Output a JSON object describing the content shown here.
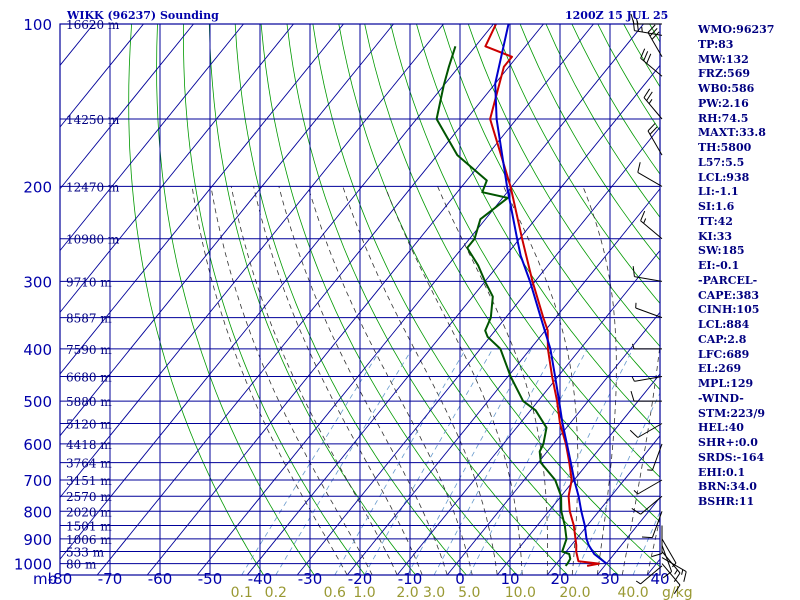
{
  "header": {
    "station": "WIKK (96237) Sounding",
    "time": "1200Z 15 JUL 25"
  },
  "chart_data": {
    "type": "skew-t",
    "pressure_unit": "mb",
    "mixing_ratio_unit": "g/kg",
    "pressure_levels": [
      100,
      200,
      300,
      400,
      500,
      600,
      700,
      800,
      900,
      1000
    ],
    "temperature_ticks": [
      -80,
      -70,
      -60,
      -50,
      -40,
      -30,
      -20,
      -10,
      0,
      10,
      20,
      30,
      40
    ],
    "mixing_ratio_labels": [
      "0.1",
      "0.2",
      "0.6",
      "1.0",
      "2.0",
      "3.0",
      "5.0",
      "10.0",
      "20.0",
      "40.0"
    ],
    "height_labels": [
      {
        "p": 100,
        "text": "16620 m"
      },
      {
        "p": 150,
        "text": "14250 m"
      },
      {
        "p": 200,
        "text": "12470 m"
      },
      {
        "p": 250,
        "text": "10980 m"
      },
      {
        "p": 300,
        "text": "9710 m"
      },
      {
        "p": 350,
        "text": "8587 m"
      },
      {
        "p": 400,
        "text": "7590 m"
      },
      {
        "p": 450,
        "text": "6680 m"
      },
      {
        "p": 500,
        "text": "5880 m"
      },
      {
        "p": 550,
        "text": "5120 m"
      },
      {
        "p": 600,
        "text": "4418 m"
      },
      {
        "p": 650,
        "text": "3764 m"
      },
      {
        "p": 700,
        "text": "3151 m"
      },
      {
        "p": 750,
        "text": "2570 m"
      },
      {
        "p": 800,
        "text": "2020 m"
      },
      {
        "p": 850,
        "text": "1501 m"
      },
      {
        "p": 900,
        "text": "1006 m"
      },
      {
        "p": 950,
        "text": "533 m"
      },
      {
        "p": 1000,
        "text": "80 m"
      }
    ],
    "series": [
      {
        "kind": "temperature",
        "color": "#cc0000",
        "points": [
          [
            1010,
            26.5
          ],
          [
            1000,
            28.5
          ],
          [
            990,
            24
          ],
          [
            950,
            22
          ],
          [
            925,
            21
          ],
          [
            900,
            19.8
          ],
          [
            850,
            17.3
          ],
          [
            800,
            14.2
          ],
          [
            750,
            11.5
          ],
          [
            700,
            9.5
          ],
          [
            650,
            6.2
          ],
          [
            600,
            2.5
          ],
          [
            550,
            -2
          ],
          [
            500,
            -6.2
          ],
          [
            450,
            -11.2
          ],
          [
            400,
            -16.5
          ],
          [
            370,
            -19.5
          ],
          [
            350,
            -22.5
          ],
          [
            300,
            -30.5
          ],
          [
            250,
            -39.5
          ],
          [
            200,
            -50.3
          ],
          [
            150,
            -65.3
          ],
          [
            120,
            -71
          ],
          [
            115,
            -71
          ],
          [
            110,
            -78
          ],
          [
            100,
            -79.5
          ]
        ]
      },
      {
        "kind": "dewpoint",
        "color": "#005500",
        "points": [
          [
            1010,
            22.2
          ],
          [
            1000,
            22.2
          ],
          [
            980,
            22
          ],
          [
            960,
            21
          ],
          [
            950,
            19.2
          ],
          [
            900,
            18
          ],
          [
            850,
            15.5
          ],
          [
            800,
            12.5
          ],
          [
            750,
            10
          ],
          [
            700,
            6.2
          ],
          [
            650,
            0.5
          ],
          [
            620,
            -1.5
          ],
          [
            600,
            -2
          ],
          [
            560,
            -4
          ],
          [
            520,
            -9
          ],
          [
            500,
            -13
          ],
          [
            450,
            -19.5
          ],
          [
            400,
            -26
          ],
          [
            380,
            -30.5
          ],
          [
            370,
            -32
          ],
          [
            350,
            -33
          ],
          [
            320,
            -36
          ],
          [
            300,
            -40
          ],
          [
            280,
            -44
          ],
          [
            260,
            -49
          ],
          [
            250,
            -49
          ],
          [
            230,
            -51
          ],
          [
            210,
            -49
          ],
          [
            205,
            -55
          ],
          [
            195,
            -56
          ],
          [
            175,
            -66
          ],
          [
            150,
            -76
          ],
          [
            130,
            -80
          ],
          [
            120,
            -82
          ],
          [
            110,
            -84
          ]
        ]
      },
      {
        "kind": "parcel",
        "color": "#0000cc",
        "points": [
          [
            1000,
            30
          ],
          [
            960,
            26
          ],
          [
            925,
            23.5
          ],
          [
            900,
            22
          ],
          [
            850,
            19.5
          ],
          [
            800,
            16.5
          ],
          [
            750,
            13.5
          ],
          [
            700,
            10
          ],
          [
            650,
            6.5
          ],
          [
            600,
            2.7
          ],
          [
            550,
            -1.5
          ],
          [
            500,
            -5.8
          ],
          [
            450,
            -10.6
          ],
          [
            400,
            -16
          ],
          [
            350,
            -23
          ],
          [
            300,
            -31
          ],
          [
            269,
            -37
          ],
          [
            250,
            -40.5
          ],
          [
            200,
            -51
          ],
          [
            150,
            -64
          ],
          [
            129,
            -70
          ],
          [
            100,
            -77
          ]
        ]
      }
    ],
    "wind_barbs": [
      {
        "p": 1010,
        "dir": 230,
        "spd": 5
      },
      {
        "p": 1000,
        "dir": 140,
        "spd": 10
      },
      {
        "p": 975,
        "dir": 120,
        "spd": 15
      },
      {
        "p": 950,
        "dir": 140,
        "spd": 15
      },
      {
        "p": 925,
        "dir": 160,
        "spd": 10
      },
      {
        "p": 900,
        "dir": 150,
        "spd": 5
      },
      {
        "p": 850,
        "dir": 180,
        "spd": 10
      },
      {
        "p": 800,
        "dir": 200,
        "spd": 10
      },
      {
        "p": 750,
        "dir": 230,
        "spd": 10
      },
      {
        "p": 700,
        "dir": 240,
        "spd": 5
      },
      {
        "p": 600,
        "dir": 200,
        "spd": 5
      },
      {
        "p": 550,
        "dir": 240,
        "spd": 10
      },
      {
        "p": 500,
        "dir": 270,
        "spd": 10
      },
      {
        "p": 450,
        "dir": 260,
        "spd": 5
      },
      {
        "p": 400,
        "dir": 270,
        "spd": 5
      },
      {
        "p": 350,
        "dir": 290,
        "spd": 5
      },
      {
        "p": 300,
        "dir": 280,
        "spd": 10
      },
      {
        "p": 250,
        "dir": 310,
        "spd": 15
      },
      {
        "p": 200,
        "dir": 300,
        "spd": 10
      },
      {
        "p": 175,
        "dir": 330,
        "spd": 20
      },
      {
        "p": 150,
        "dir": 320,
        "spd": 25
      },
      {
        "p": 125,
        "dir": 310,
        "spd": 30
      },
      {
        "p": 115,
        "dir": 330,
        "spd": 30
      },
      {
        "p": 105,
        "dir": 280,
        "spd": 25
      },
      {
        "p": 100,
        "dir": 270,
        "spd": 15
      }
    ]
  },
  "stats": [
    "WMO:96237",
    "TP:83",
    "MW:132",
    "FRZ:569",
    "WB0:586",
    "PW:2.16",
    "RH:74.5",
    "MAXT:33.8",
    "TH:5800",
    "L57:5.5",
    "LCL:938",
    "LI:-1.1",
    "SI:1.6",
    "TT:42",
    "KI:33",
    "SW:185",
    "EI:-0.1",
    "-PARCEL-",
    "CAPE:383",
    "CINH:105",
    "LCL:884",
    "CAP:2.8",
    "LFC:689",
    "EL:269",
    "MPL:129",
    "-WIND-",
    "STM:223/9",
    "HEL:40",
    "SHR+:0.0",
    "SRDS:-164",
    "EHI:0.1",
    "BRN:34.0",
    "BSHR:11"
  ],
  "colors": {
    "isobar": "#000099",
    "isotherm": "#000099",
    "dry_adiabat": "#009900",
    "moist_adiabat": "#333333",
    "mixing_ratio": "#6699cc",
    "label_blue": "#0000aa",
    "label_olive": "#999933"
  }
}
